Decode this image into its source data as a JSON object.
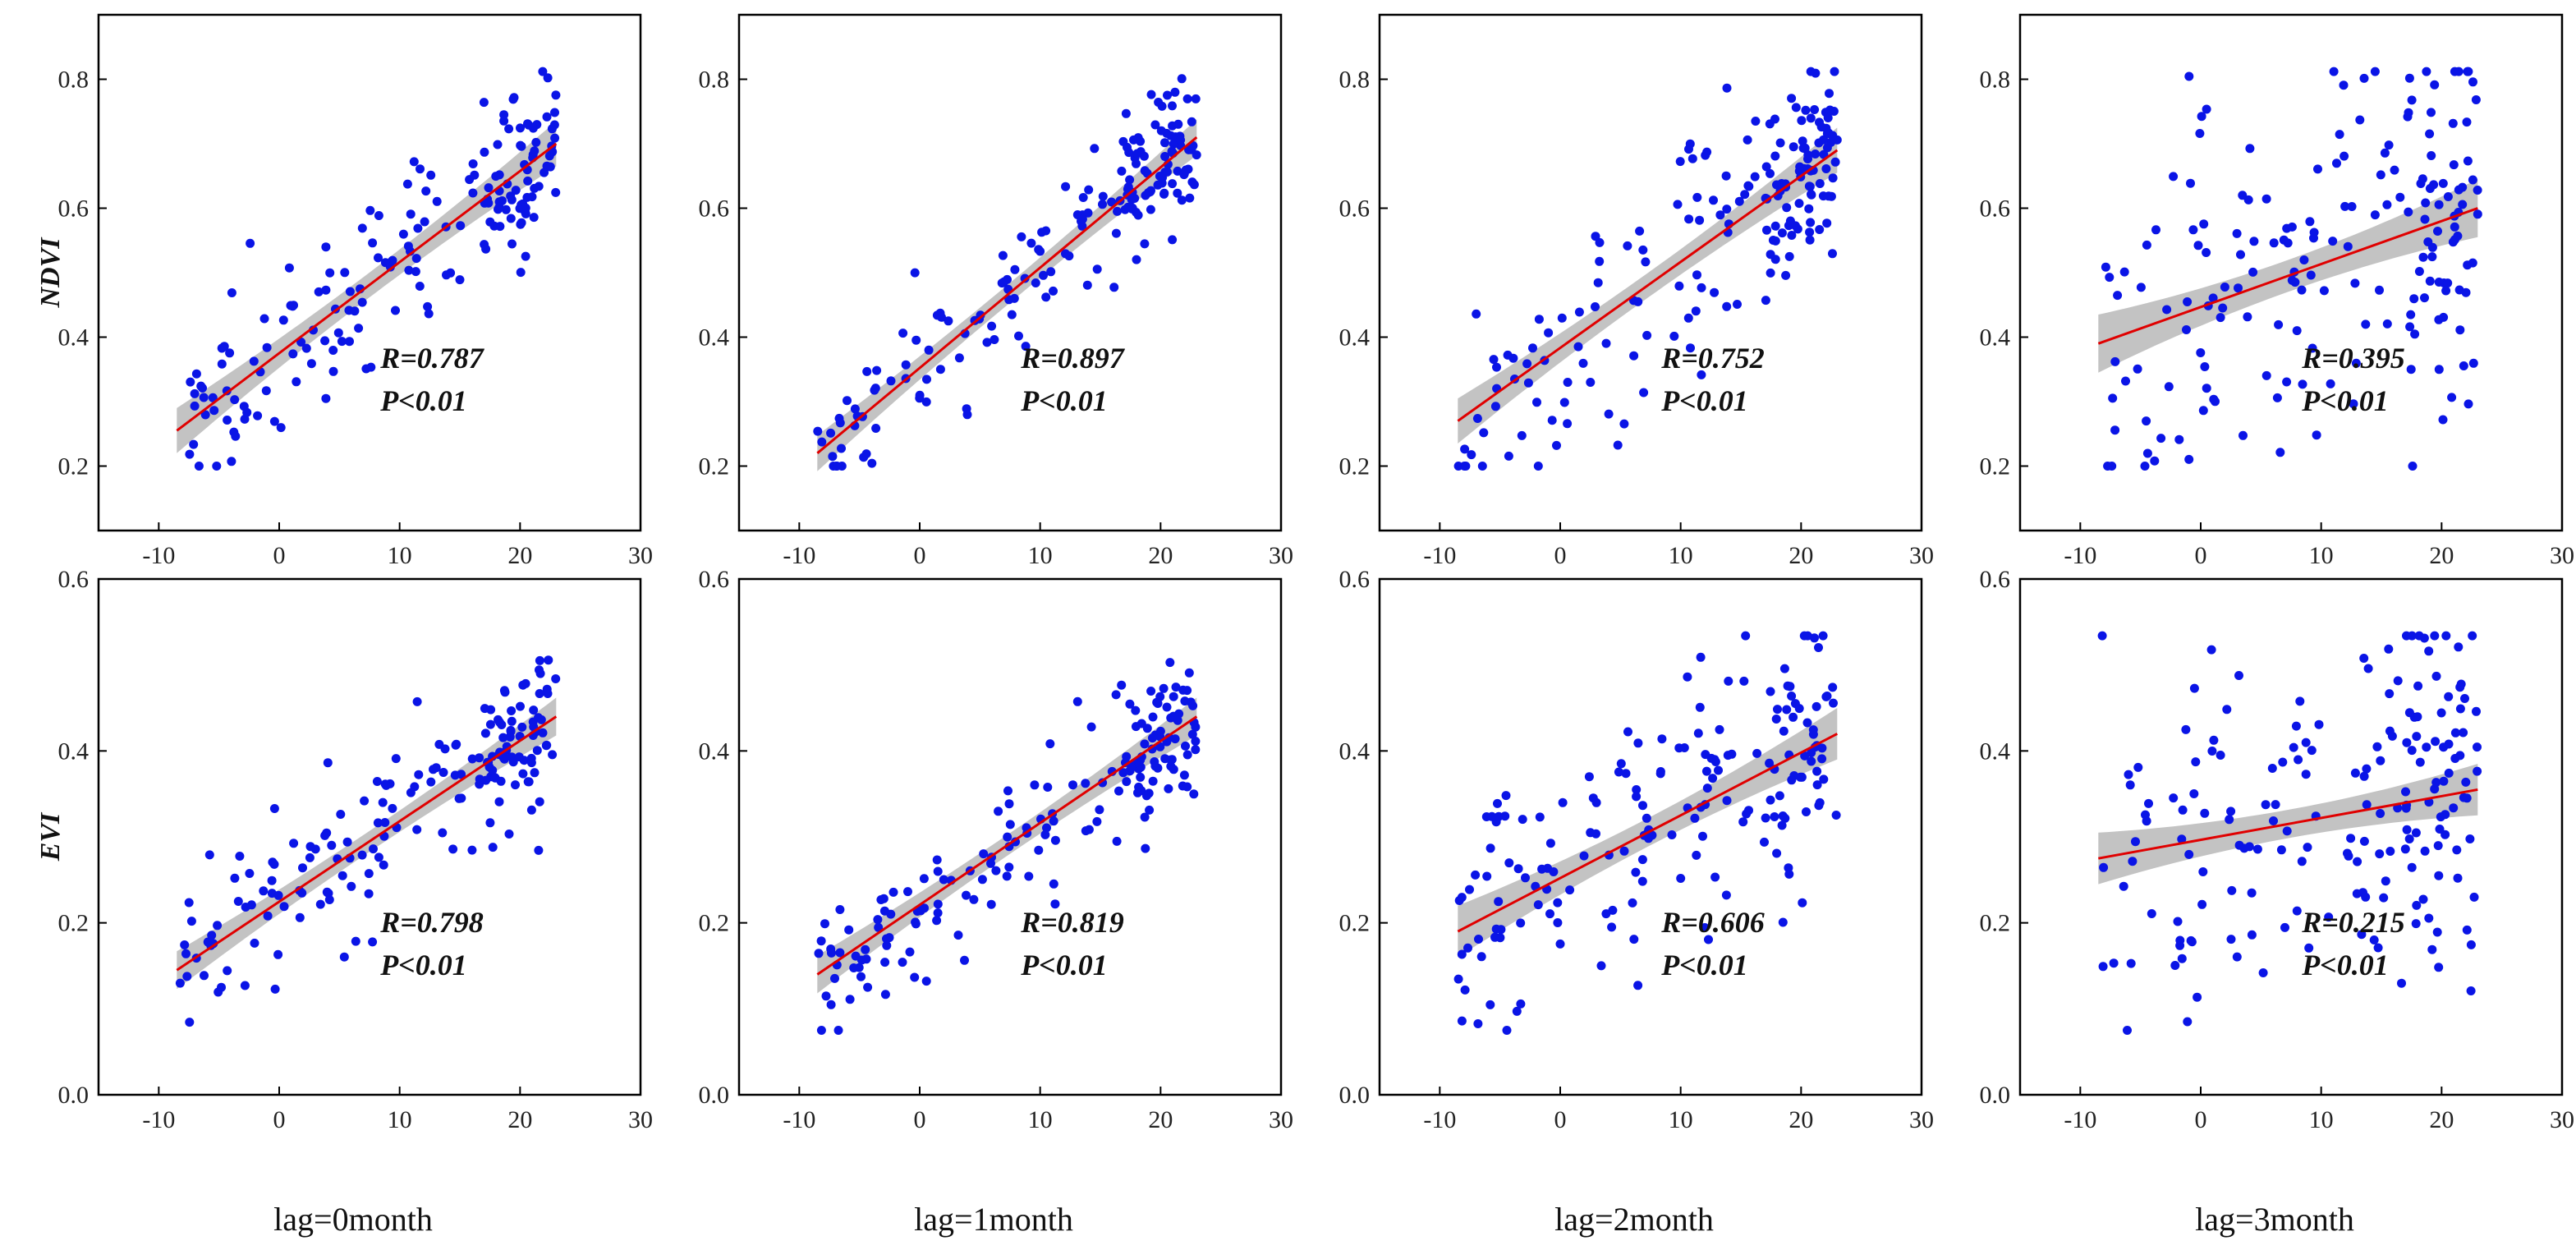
{
  "chart_data": {
    "type": "scatter",
    "layout": "2 rows x 4 columns",
    "x_axis": {
      "range": [
        -15,
        30
      ],
      "ticks": [
        -10,
        0,
        10,
        20,
        30
      ],
      "x_data_span": [
        -8.5,
        23
      ]
    },
    "column_labels": [
      "lag=0month",
      "lag=1month",
      "lag=2month",
      "lag=3month"
    ],
    "rows": [
      {
        "ylabel": "NDVI",
        "ylim": [
          0.1,
          0.9
        ],
        "y_ticks": [
          0.2,
          0.4,
          0.6,
          0.8
        ],
        "y_tick_labels": [
          "0.2",
          "0.4",
          "0.6",
          "0.8"
        ],
        "panels": [
          {
            "R_label": "R=0.787",
            "P_label": "P<0.01",
            "fit_start": [
              -8.5,
              0.255
            ],
            "fit_end": [
              23,
              0.7
            ],
            "band": 0.035,
            "spread": 0.075,
            "seed": 11
          },
          {
            "R_label": "R=0.897",
            "P_label": "P<0.01",
            "fit_start": [
              -8.5,
              0.22
            ],
            "fit_end": [
              23,
              0.71
            ],
            "band": 0.028,
            "spread": 0.05,
            "seed": 23
          },
          {
            "R_label": "R=0.752",
            "P_label": "P<0.01",
            "fit_start": [
              -8.5,
              0.27
            ],
            "fit_end": [
              23,
              0.69
            ],
            "band": 0.035,
            "spread": 0.09,
            "seed": 37
          },
          {
            "R_label": "R=0.395",
            "P_label": "P<0.01",
            "fit_start": [
              -8.5,
              0.39
            ],
            "fit_end": [
              23,
              0.6
            ],
            "band": 0.045,
            "spread": 0.15,
            "seed": 41
          }
        ]
      },
      {
        "ylabel": "EVI",
        "ylim": [
          0.0,
          0.6
        ],
        "y_ticks": [
          0.0,
          0.2,
          0.4,
          0.6
        ],
        "y_tick_labels": [
          "0.0",
          "0.2",
          "0.4",
          "0.6"
        ],
        "panels": [
          {
            "R_label": "R=0.798",
            "P_label": "P<0.01",
            "fit_start": [
              -8.5,
              0.145
            ],
            "fit_end": [
              23,
              0.44
            ],
            "band": 0.022,
            "spread": 0.05,
            "seed": 53
          },
          {
            "R_label": "R=0.819",
            "P_label": "P<0.01",
            "fit_start": [
              -8.5,
              0.14
            ],
            "fit_end": [
              23,
              0.44
            ],
            "band": 0.022,
            "spread": 0.045,
            "seed": 61
          },
          {
            "R_label": "R=0.606",
            "P_label": "P<0.01",
            "fit_start": [
              -8.5,
              0.19
            ],
            "fit_end": [
              23,
              0.42
            ],
            "band": 0.03,
            "spread": 0.085,
            "seed": 71
          },
          {
            "R_label": "R=0.215",
            "P_label": "P<0.01",
            "fit_start": [
              -8.5,
              0.275
            ],
            "fit_end": [
              23,
              0.355
            ],
            "band": 0.03,
            "spread": 0.11,
            "seed": 83
          }
        ]
      }
    ],
    "colors": {
      "points": "#0a14e6",
      "fit_line": "#e00000",
      "confidence_band": "#b4b4b4",
      "frame": "#000000"
    },
    "points_per_panel": 180
  }
}
